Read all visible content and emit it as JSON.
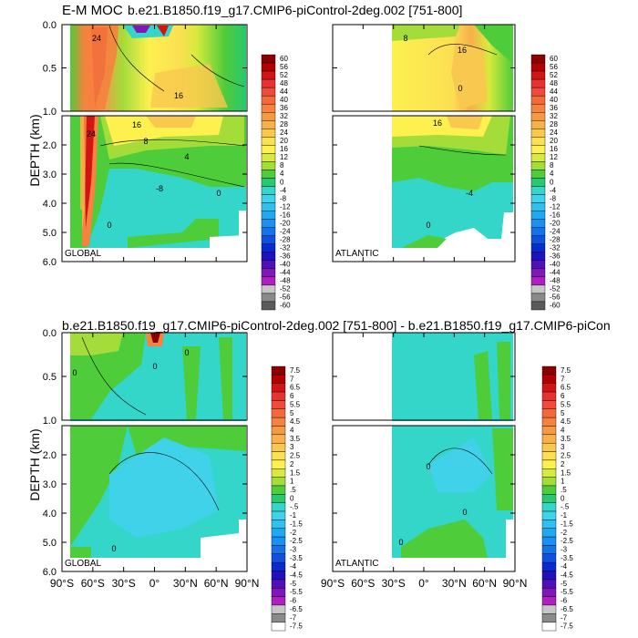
{
  "chart_data": {
    "type": "heatmap",
    "title": "E-M MOC",
    "case_label": "b.e21.B1850.f19_g17.CMIP6-piControl-2deg.002 [751-800]",
    "diff_title": "b.e21.B1850.f19_g17.CMIP6-piControl-2deg.002 [751-800] - b.e21.B1850.f19_g17.CMIP6-piCon",
    "ylabel": "DEPTH (km)",
    "y_ticks_upper": [
      "0.0",
      "0.5",
      "1.0"
    ],
    "y_ticks_lower": [
      "2.0",
      "3.0",
      "4.0",
      "5.0",
      "6.0"
    ],
    "x_ticks": [
      "90°S",
      "60°S",
      "30°S",
      "0°",
      "30°N",
      "60°N",
      "90°N"
    ],
    "xlim": [
      -90,
      90
    ],
    "ylim_km": [
      0,
      6
    ],
    "panels": [
      {
        "name": "top-global",
        "basin": "GLOBAL",
        "field": "mean",
        "lat_min": -80,
        "lat_max": 90
      },
      {
        "name": "top-atlantic",
        "basin": "ATLANTIC",
        "field": "mean",
        "lat_min": -34,
        "lat_max": 90
      },
      {
        "name": "bottom-global",
        "basin": "GLOBAL",
        "field": "diff",
        "lat_min": -80,
        "lat_max": 90
      },
      {
        "name": "bottom-atlantic",
        "basin": "ATLANTIC",
        "field": "diff",
        "lat_min": -34,
        "lat_max": 90
      }
    ],
    "contour_labels": {
      "top-global": [
        "24",
        "16",
        "8",
        "4",
        "0",
        "-8",
        "0",
        "16",
        "24"
      ],
      "top-atlantic": [
        "8",
        "16",
        "16",
        "0",
        "-4",
        "0"
      ],
      "bottom-global": [
        "0",
        "0",
        "0",
        "0"
      ],
      "bottom-atlantic": [
        "0",
        "0",
        "0"
      ]
    },
    "colorbar_top": {
      "labels": [
        "60",
        "56",
        "52",
        "48",
        "44",
        "40",
        "36",
        "32",
        "28",
        "24",
        "20",
        "16",
        "12",
        "8",
        "4",
        "0",
        "-4",
        "-8",
        "-12",
        "-16",
        "-20",
        "-24",
        "-28",
        "-32",
        "-36",
        "-40",
        "-44",
        "-48",
        "-52",
        "-56",
        "-60"
      ],
      "colors": [
        "#8b0000",
        "#b30000",
        "#d11414",
        "#e83232",
        "#f04a3a",
        "#f26a3c",
        "#f5823e",
        "#f59a44",
        "#f7b04a",
        "#f9c84f",
        "#fbe052",
        "#fdf04f",
        "#d8ea3c",
        "#a4dc3a",
        "#4fcc3a",
        "#27c870",
        "#33d6c8",
        "#3fd2e8",
        "#2ec0f0",
        "#20a8f0",
        "#1a90f0",
        "#1473e8",
        "#1050e0",
        "#0a2ad0",
        "#2010c0",
        "#5010b8",
        "#8018b8",
        "#b020c0",
        "#c6c6c6",
        "#8a8a8a",
        "#5a5a5a"
      ]
    },
    "colorbar_bottom": {
      "labels": [
        "7.5",
        "7",
        "6.5",
        "6",
        "5.5",
        "5",
        "4.5",
        "4",
        "3.5",
        "3",
        "2.5",
        "2",
        "1.5",
        "1",
        ".5",
        "0",
        "-.5",
        "-1",
        "-1.5",
        "-2",
        "-2.5",
        "-3",
        "-3.5",
        "-4",
        "-4.5",
        "-5",
        "-5.5",
        "-6",
        "-6.5",
        "-7",
        "-7.5"
      ],
      "colors": [
        "#8b0000",
        "#b30000",
        "#d11414",
        "#e83232",
        "#f04a3a",
        "#f26a3c",
        "#f5823e",
        "#f59a44",
        "#f7b04a",
        "#f9c84f",
        "#fbe052",
        "#fdf04f",
        "#d8ea3c",
        "#a4dc3a",
        "#4fcc3a",
        "#27c870",
        "#33d6c8",
        "#3fd2e8",
        "#2ec0f0",
        "#20a8f0",
        "#1a90f0",
        "#1473e8",
        "#1050e0",
        "#0a2ad0",
        "#2010c0",
        "#5010b8",
        "#8018b8",
        "#b020c0",
        "#c6c6c6",
        "#8a8a8a",
        "#ffffff"
      ]
    }
  }
}
